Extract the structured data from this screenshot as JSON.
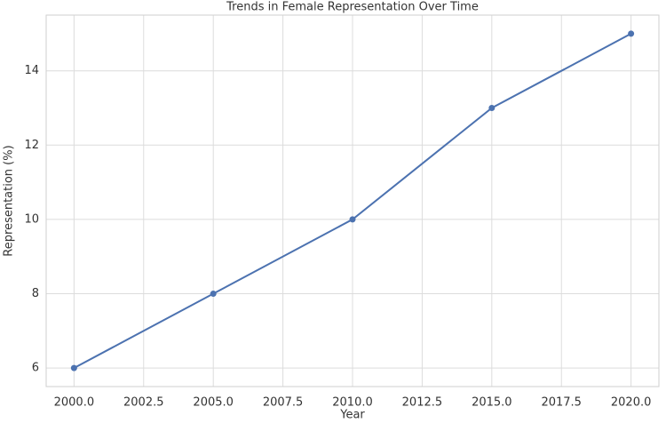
{
  "chart_data": {
    "type": "line",
    "title": "Trends in Female Representation Over Time",
    "x_label": "Year",
    "y_label": "Representation (%)",
    "x": [
      2000,
      2005,
      2010,
      2015,
      2020
    ],
    "series": [
      {
        "name": "Representation",
        "color": "#4c72b0",
        "values": [
          6,
          8,
          10,
          13,
          15
        ]
      }
    ],
    "xlim": [
      1999,
      2021
    ],
    "ylim": [
      5.5,
      15.5
    ],
    "xticks": [
      {
        "value": 2000,
        "label": "2000.0"
      },
      {
        "value": 2002.5,
        "label": "2002.5"
      },
      {
        "value": 2005,
        "label": "2005.0"
      },
      {
        "value": 2007.5,
        "label": "2007.5"
      },
      {
        "value": 2010,
        "label": "2010.0"
      },
      {
        "value": 2012.5,
        "label": "2012.5"
      },
      {
        "value": 2015,
        "label": "2015.0"
      },
      {
        "value": 2017.5,
        "label": "2017.5"
      },
      {
        "value": 2020,
        "label": "2020.0"
      }
    ],
    "yticks": [
      6,
      8,
      10,
      12,
      14
    ],
    "grid": true
  }
}
